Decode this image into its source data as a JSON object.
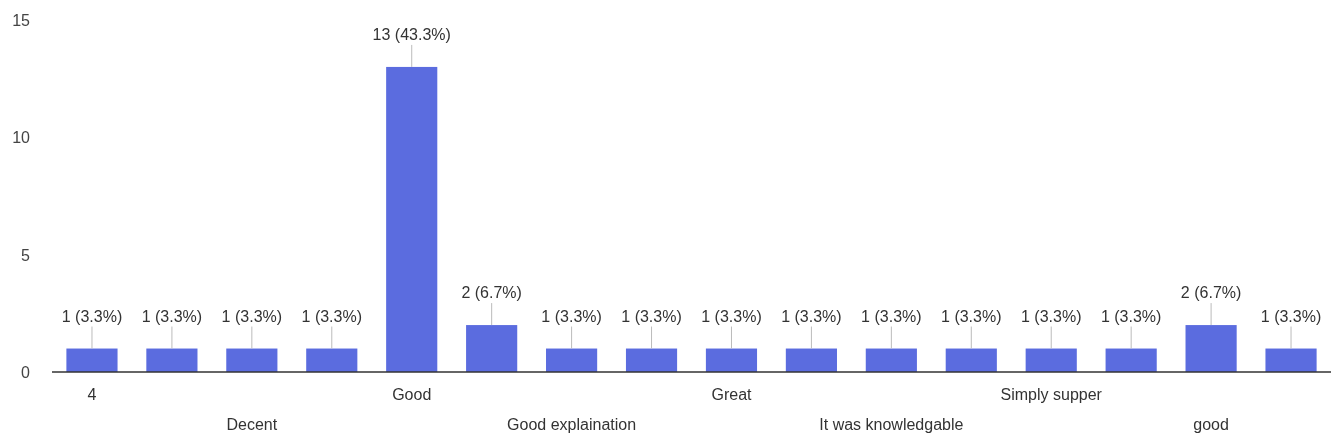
{
  "chart_data": {
    "type": "bar",
    "categories": [
      "4",
      null,
      "Decent",
      null,
      "Good",
      null,
      "Good explaination",
      null,
      "Great",
      null,
      "It was knowledgable",
      null,
      "Simply supper",
      null,
      "good",
      null
    ],
    "values": [
      1,
      1,
      1,
      1,
      13,
      2,
      1,
      1,
      1,
      1,
      1,
      1,
      1,
      1,
      2,
      1
    ],
    "value_labels": [
      "1 (3.3%)",
      "1 (3.3%)",
      "1 (3.3%)",
      "1 (3.3%)",
      "13 (43.3%)",
      "2 (6.7%)",
      "1 (3.3%)",
      "1 (3.3%)",
      "1 (3.3%)",
      "1 (3.3%)",
      "1 (3.3%)",
      "1 (3.3%)",
      "1 (3.3%)",
      "1 (3.3%)",
      "2 (6.7%)",
      "1 (3.3%)"
    ],
    "color": "#5b6cdf",
    "ylim": [
      0,
      15
    ],
    "yticks": [
      0,
      5,
      10,
      15
    ],
    "grid": false
  }
}
